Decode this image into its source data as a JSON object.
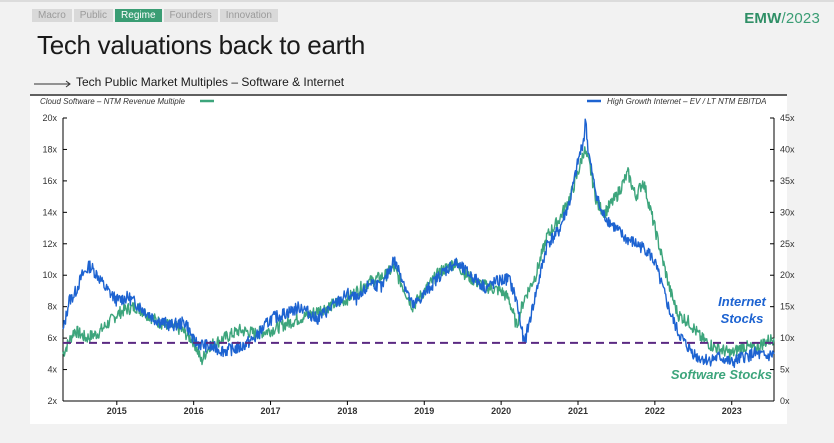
{
  "nav": {
    "tabs": [
      {
        "label": "Macro",
        "active": false
      },
      {
        "label": "Public",
        "active": false
      },
      {
        "label": "Regime",
        "active": true
      },
      {
        "label": "Founders",
        "active": false
      },
      {
        "label": "Innovation",
        "active": false
      }
    ]
  },
  "brand": {
    "prefix": "EMW",
    "suffix": "/2023"
  },
  "page": {
    "title": "Tech valuations back to earth",
    "subtitle": "Tech Public Market Multiples – Software & Internet"
  },
  "colors": {
    "software": "#3da57c",
    "internet": "#1d63d1",
    "reference": "#5b2a82"
  },
  "chart_data": {
    "type": "line",
    "title": "Tech Public Market Multiples – Software & Internet",
    "x_ticks": [
      "2015",
      "2016",
      "2017",
      "2018",
      "2019",
      "2020",
      "2021",
      "2022",
      "2023"
    ],
    "x_range": [
      2014.3,
      2023.55
    ],
    "left_axis": {
      "label": "Cloud Software – NTM Revenue Multiple",
      "range": [
        2,
        20
      ],
      "ticks": [
        "2x",
        "4x",
        "6x",
        "8x",
        "10x",
        "12x",
        "14x",
        "16x",
        "18x",
        "20x"
      ]
    },
    "right_axis": {
      "label": "High Growth Internet – EV / LT NTM EBITDA",
      "range": [
        0,
        45
      ],
      "ticks": [
        "0x",
        "5x",
        "10x",
        "15x",
        "20x",
        "25x",
        "30x",
        "35x",
        "40x",
        "45x"
      ]
    },
    "series": [
      {
        "name": "Cloud Software – NTM Revenue Multiple",
        "axis": "left",
        "x": [
          2014.3,
          2014.45,
          2014.6,
          2014.75,
          2014.9,
          2015.0,
          2015.1,
          2015.25,
          2015.4,
          2015.55,
          2015.7,
          2015.85,
          2016.0,
          2016.05,
          2016.1,
          2016.2,
          2016.4,
          2016.6,
          2016.8,
          2017.0,
          2017.25,
          2017.5,
          2017.75,
          2018.0,
          2018.25,
          2018.5,
          2018.6,
          2018.75,
          2018.85,
          2019.0,
          2019.2,
          2019.4,
          2019.55,
          2019.7,
          2019.85,
          2020.0,
          2020.1,
          2020.2,
          2020.3,
          2020.45,
          2020.6,
          2020.75,
          2020.9,
          2021.0,
          2021.08,
          2021.15,
          2021.25,
          2021.35,
          2021.5,
          2021.65,
          2021.75,
          2021.85,
          2022.0,
          2022.1,
          2022.2,
          2022.3,
          2022.45,
          2022.6,
          2022.75,
          2022.9,
          2023.0,
          2023.15,
          2023.3,
          2023.45,
          2023.55
        ],
        "values": [
          5.0,
          6.5,
          6.0,
          6.3,
          7.0,
          7.5,
          7.8,
          8.0,
          7.5,
          7.0,
          6.8,
          6.5,
          5.8,
          5.2,
          4.5,
          5.5,
          6.0,
          6.5,
          6.3,
          6.5,
          7.0,
          7.5,
          8.0,
          8.5,
          9.5,
          10.0,
          10.5,
          9.0,
          8.0,
          9.0,
          10.2,
          10.8,
          10.0,
          9.5,
          9.2,
          9.0,
          8.5,
          6.8,
          8.5,
          10.0,
          12.5,
          13.5,
          15.0,
          16.5,
          18.0,
          17.0,
          14.5,
          14.0,
          15.0,
          16.5,
          15.0,
          16.0,
          13.0,
          11.0,
          9.0,
          7.5,
          7.0,
          6.0,
          5.5,
          5.2,
          5.0,
          5.5,
          5.3,
          5.8,
          6.0
        ]
      },
      {
        "name": "High Growth Internet – EV / LT NTM EBITDA",
        "axis": "right",
        "x": [
          2014.3,
          2014.38,
          2014.45,
          2014.55,
          2014.65,
          2014.75,
          2014.85,
          2015.0,
          2015.15,
          2015.3,
          2015.5,
          2015.7,
          2015.9,
          2016.0,
          2016.1,
          2016.25,
          2016.4,
          2016.6,
          2016.8,
          2017.0,
          2017.2,
          2017.4,
          2017.6,
          2017.8,
          2018.0,
          2018.15,
          2018.3,
          2018.45,
          2018.6,
          2018.7,
          2018.85,
          2019.0,
          2019.2,
          2019.4,
          2019.6,
          2019.8,
          2019.95,
          2020.1,
          2020.2,
          2020.3,
          2020.45,
          2020.6,
          2020.75,
          2020.9,
          2021.0,
          2021.08,
          2021.1,
          2021.13,
          2021.2,
          2021.3,
          2021.45,
          2021.6,
          2021.75,
          2021.9,
          2022.0,
          2022.1,
          2022.2,
          2022.3,
          2022.4,
          2022.55,
          2022.7,
          2022.85,
          2023.0,
          2023.15,
          2023.3,
          2023.45,
          2023.55
        ],
        "values": [
          11.0,
          16.0,
          17.0,
          20.0,
          21.5,
          20.0,
          18.0,
          16.0,
          16.5,
          15.0,
          13.0,
          12.0,
          12.5,
          9.5,
          9.0,
          8.5,
          8.0,
          8.5,
          10.0,
          13.0,
          14.0,
          15.0,
          13.0,
          15.0,
          17.0,
          16.0,
          19.0,
          18.0,
          22.5,
          20.0,
          15.0,
          17.0,
          20.0,
          22.0,
          20.0,
          18.0,
          19.0,
          19.5,
          16.0,
          9.0,
          17.0,
          25.0,
          27.0,
          32.0,
          38.0,
          42.0,
          45.0,
          40.0,
          35.0,
          30.0,
          28.0,
          26.0,
          25.0,
          24.0,
          22.0,
          18.0,
          14.0,
          11.0,
          9.0,
          7.0,
          6.5,
          7.0,
          6.0,
          7.0,
          7.5,
          7.0,
          7.5
        ]
      }
    ],
    "reference_line": {
      "value": 5.7,
      "axis": "left",
      "style": "dashed"
    },
    "annotations": [
      {
        "text": "Internet",
        "series": "High Growth Internet – EV / LT NTM EBITDA"
      },
      {
        "text": "Stocks",
        "series": "High Growth Internet – EV / LT NTM EBITDA"
      },
      {
        "text": "Software Stocks",
        "series": "Cloud Software – NTM Revenue Multiple"
      }
    ],
    "legend": [
      {
        "label": "Cloud Software – NTM Revenue Multiple",
        "placement": "top-left"
      },
      {
        "label": "High Growth Internet – EV / LT NTM EBITDA",
        "placement": "top-right"
      }
    ]
  }
}
